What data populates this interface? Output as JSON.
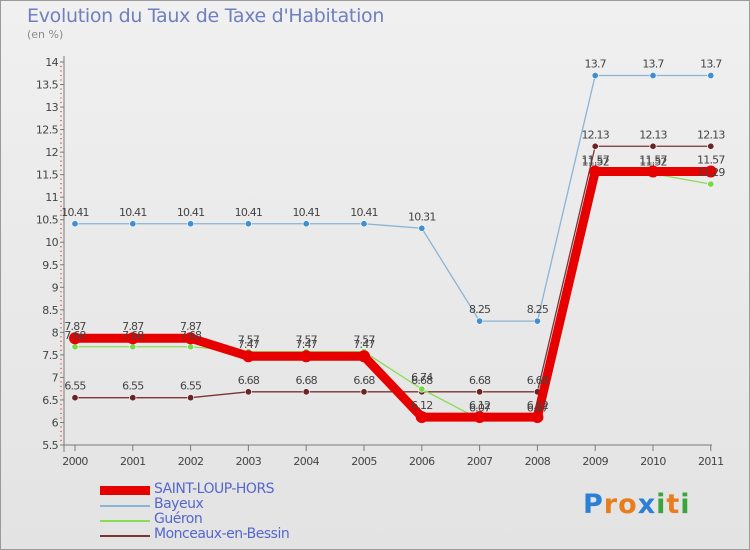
{
  "title": "Evolution du Taux de Taxe d'Habitation",
  "subtitle": "(en %)",
  "chart_data": {
    "type": "line",
    "title": "Evolution du Taux de Taxe d'Habitation",
    "ylabel": "(en %)",
    "ylim": [
      5.5,
      14
    ],
    "yticks": [
      "5.5",
      "6",
      "6.5",
      "7",
      "7.5",
      "8",
      "8.5",
      "9",
      "9.5",
      "10",
      "10.5",
      "11",
      "11.5",
      "12",
      "12.5",
      "13",
      "13.5",
      "14"
    ],
    "categories": [
      "2000",
      "2001",
      "2002",
      "2003",
      "2004",
      "2005",
      "2006",
      "2007",
      "2008",
      "2009",
      "2010",
      "2011"
    ],
    "series": [
      {
        "name": "SAINT-LOUP-HORS",
        "color": "#e60000",
        "marker": "#e60000",
        "values": [
          7.87,
          7.87,
          7.87,
          7.47,
          7.47,
          7.47,
          6.12,
          6.12,
          6.12,
          11.57,
          11.57,
          11.57
        ],
        "labels": [
          "7.87",
          "7.87",
          "7.87",
          "7.47",
          "7.47",
          "7.47",
          "6.12",
          "6.12",
          "6.12",
          "11.57",
          "11.57",
          "11.57"
        ]
      },
      {
        "name": "Bayeux",
        "color": "#8ab4d6",
        "marker": "#3f8fd2",
        "values": [
          10.41,
          10.41,
          10.41,
          10.41,
          10.41,
          10.41,
          10.31,
          8.25,
          8.25,
          13.7,
          13.7,
          13.7
        ],
        "labels": [
          "10.41",
          "10.41",
          "10.41",
          "10.41",
          "10.41",
          "10.41",
          "10.31",
          "8.25",
          "8.25",
          "13.7",
          "13.7",
          "13.7"
        ]
      },
      {
        "name": "Guéron",
        "color": "#88dd55",
        "marker": "#7ad64a",
        "values": [
          7.68,
          7.68,
          7.68,
          7.57,
          7.57,
          7.57,
          6.74,
          6.07,
          6.07,
          11.52,
          11.52,
          11.29
        ],
        "labels": [
          "7.68",
          "7.68",
          "7.68",
          "7.57",
          "7.57",
          "7.57",
          "6.74",
          "6.07",
          "6.07",
          "11.52",
          "11.52",
          "11.29"
        ]
      },
      {
        "name": "Monceaux-en-Bessin",
        "color": "#7a3535",
        "marker": "#6a2424",
        "values": [
          6.55,
          6.55,
          6.55,
          6.68,
          6.68,
          6.68,
          6.68,
          6.68,
          6.68,
          12.13,
          12.13,
          12.13
        ],
        "labels": [
          "6.55",
          "6.55",
          "6.55",
          "6.68",
          "6.68",
          "6.68",
          "6.68",
          "6.68",
          "6.68",
          "12.13",
          "12.13",
          "12.13"
        ]
      }
    ],
    "legend_position": "bottom-left"
  },
  "legend": [
    {
      "label": "SAINT-LOUP-HORS",
      "color": "#e60000"
    },
    {
      "label": "Bayeux",
      "color": "#8ab4d6"
    },
    {
      "label": "Guéron",
      "color": "#88dd55"
    },
    {
      "label": "Monceaux-en-Bessin",
      "color": "#7a3535"
    }
  ],
  "logo": {
    "text": "Proxiti",
    "letters": [
      "P",
      "r",
      "o",
      "x",
      "i",
      "t",
      "i"
    ],
    "colors": [
      "#2b7fd4",
      "#e87d1e",
      "#e87d1e",
      "#2b7fd4",
      "#3aa53a",
      "#e87d1e",
      "#3aa53a"
    ]
  }
}
